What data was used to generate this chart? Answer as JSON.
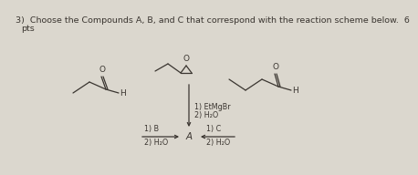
{
  "title_line1": "3)  Choose the Compounds A, B, and C that correspond with the reaction scheme below.  6",
  "title_line2": "pts",
  "bg_color": "#dbd7ce",
  "text_color": "#3a3530",
  "fontsize_title": 6.8,
  "fontsize_label": 5.8,
  "fontsize_mol": 6.5,
  "fontsize_A": 7.5
}
